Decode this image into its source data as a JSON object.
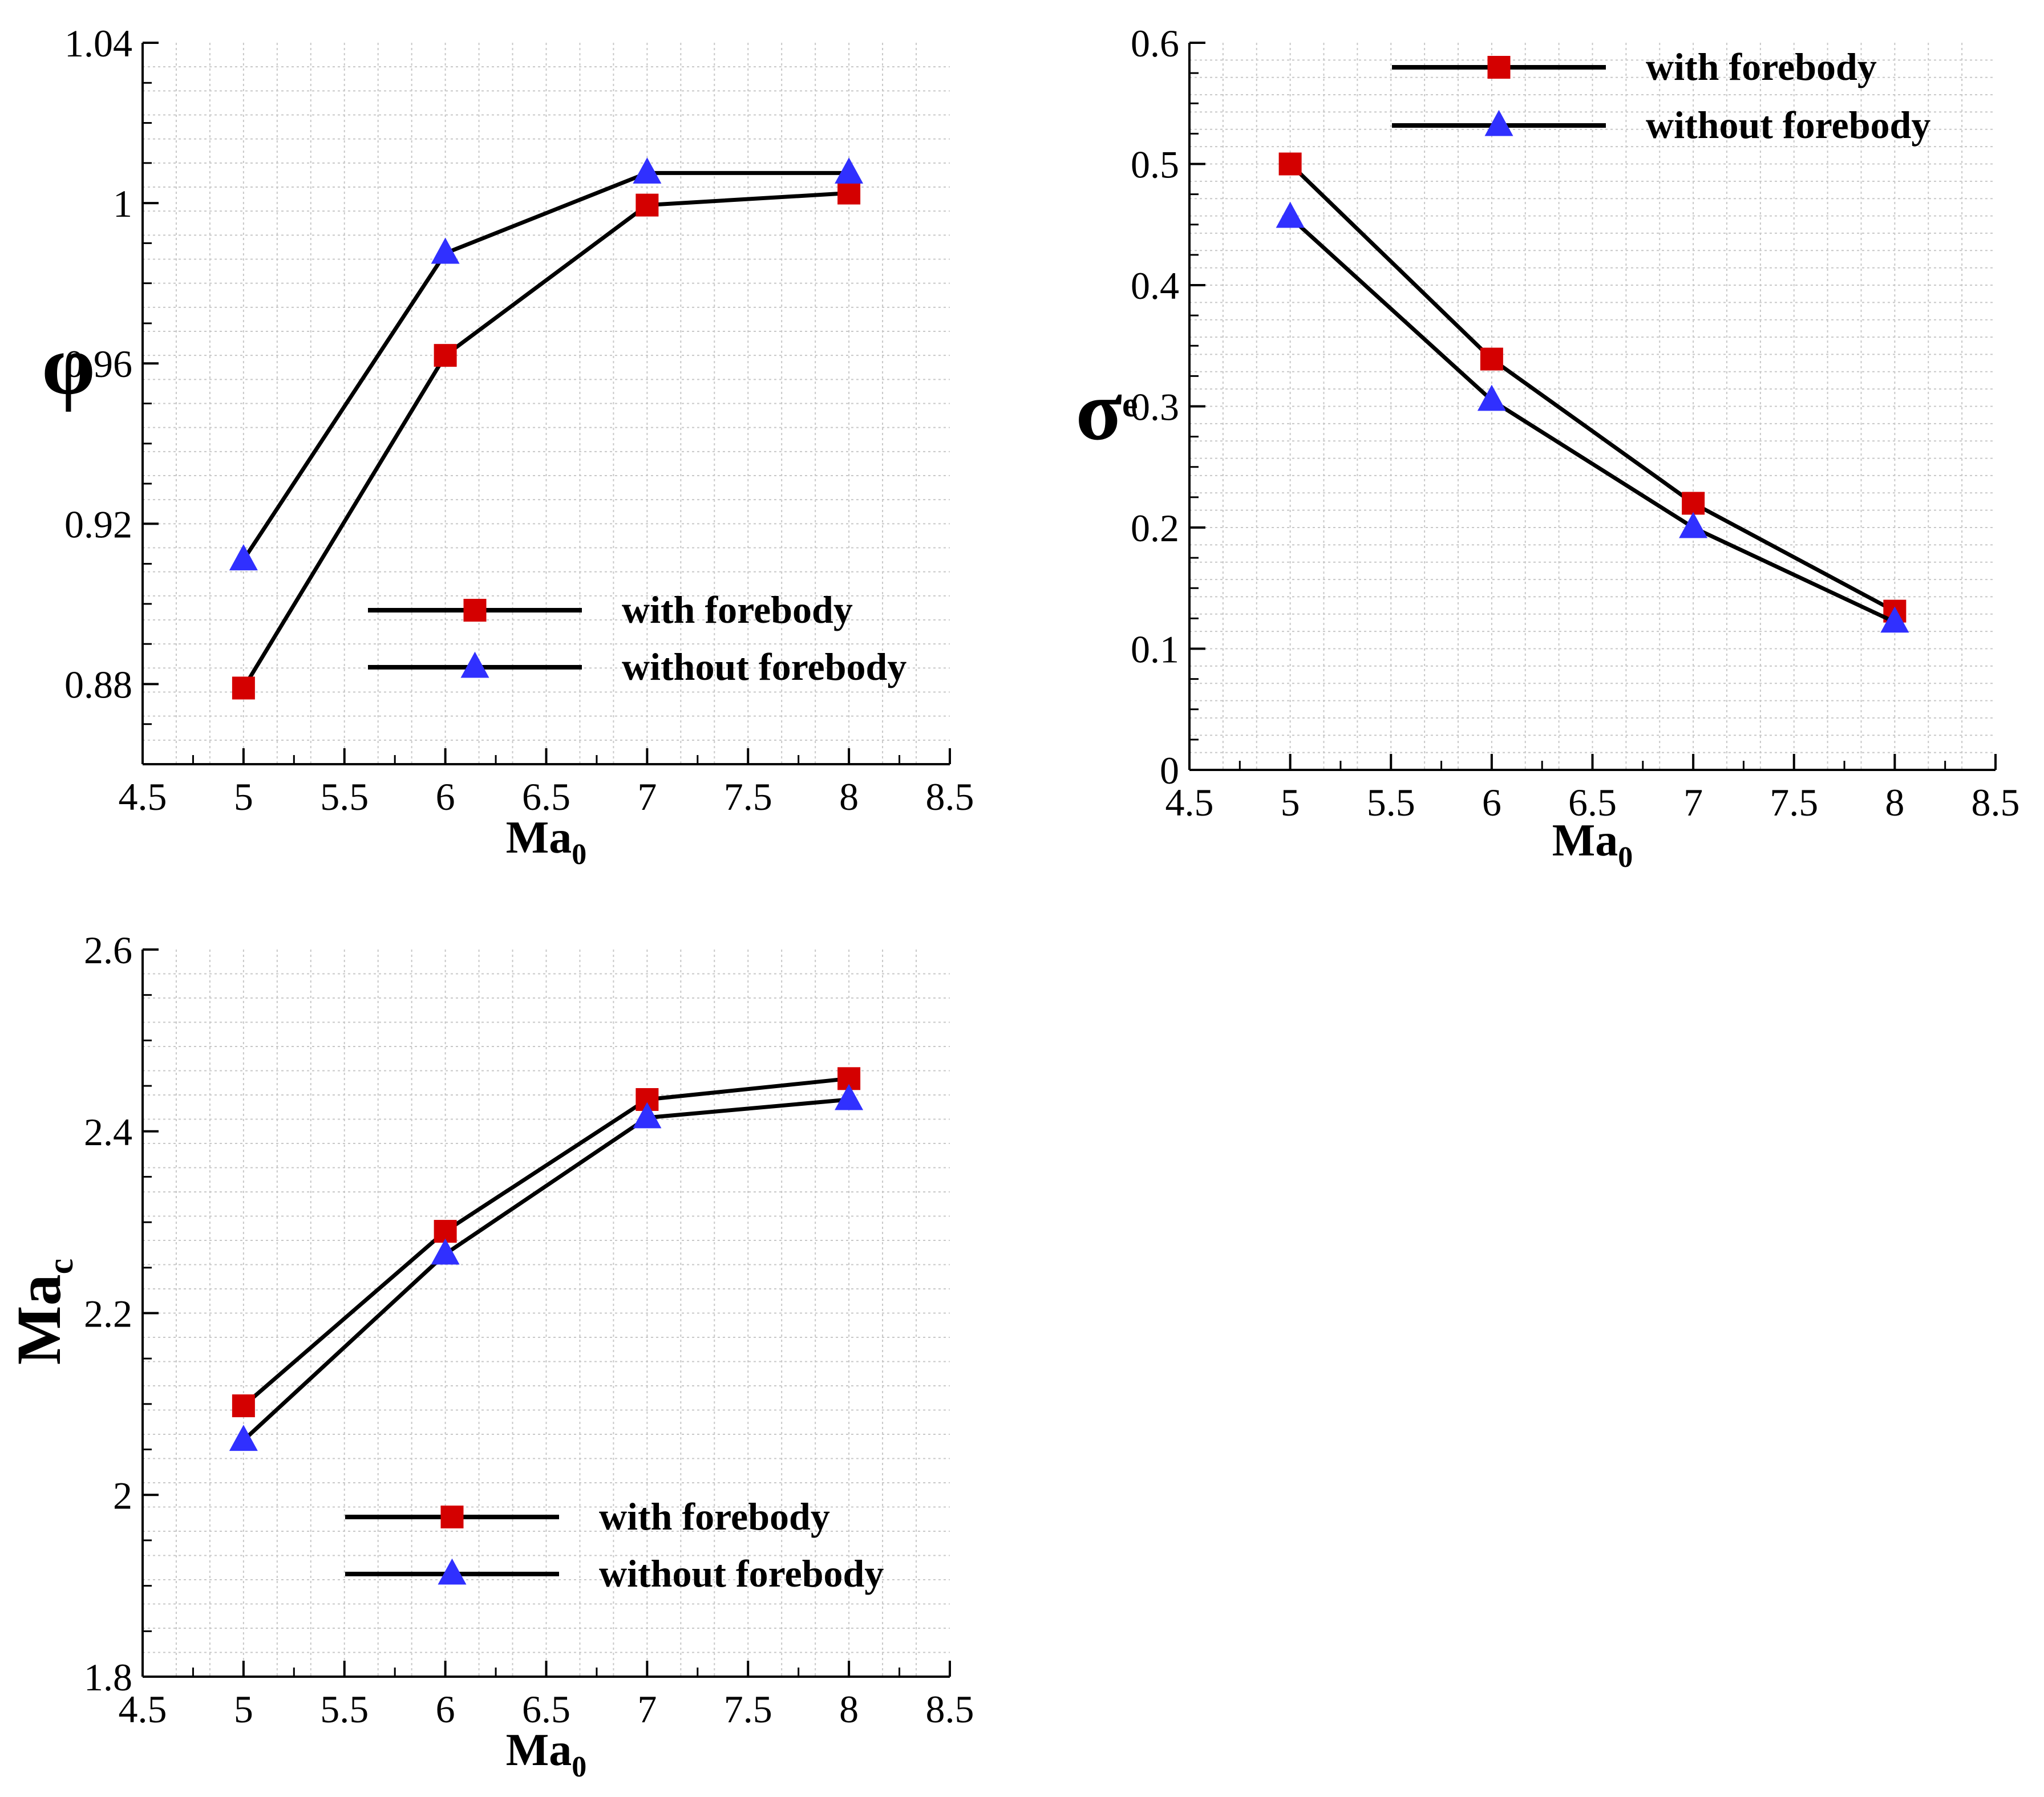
{
  "colors": {
    "with_forebody_marker": "#d40000",
    "without_forebody_marker": "#3030ff",
    "line": "#000000",
    "grid": "#c8c8c8"
  },
  "chart_data": [
    {
      "id": "phi",
      "type": "line",
      "xlabel": "Ma",
      "xlabel_sub": "0",
      "ylabel": "φ",
      "ylabel_sub": "",
      "xlim": [
        4.5,
        8.5
      ],
      "ylim": [
        0.86,
        1.04
      ],
      "xticks": [
        "4.5",
        "5",
        "5.5",
        "6",
        "6.5",
        "7",
        "7.5",
        "8",
        "8.5"
      ],
      "yticks": [
        "0.88",
        "0.92",
        "0.96",
        "1",
        "1.04"
      ],
      "grid": true,
      "legend_position": "bottom-right",
      "series": [
        {
          "name": "with forebody",
          "marker": "square",
          "x": [
            5,
            6,
            7,
            8
          ],
          "y": [
            0.879,
            0.962,
            0.9995,
            1.0025
          ]
        },
        {
          "name": "without forebody",
          "marker": "triangle",
          "x": [
            5,
            6,
            7,
            8
          ],
          "y": [
            0.911,
            0.9875,
            1.0075,
            1.0075
          ]
        }
      ]
    },
    {
      "id": "sigma",
      "type": "line",
      "xlabel": "Ma",
      "xlabel_sub": "0",
      "ylabel": "σ",
      "ylabel_sub": "e",
      "xlim": [
        4.5,
        8.5
      ],
      "ylim": [
        0,
        0.6
      ],
      "xticks": [
        "4.5",
        "5",
        "5.5",
        "6",
        "6.5",
        "7",
        "7.5",
        "8",
        "8.5"
      ],
      "yticks": [
        "0",
        "0.1",
        "0.2",
        "0.3",
        "0.4",
        "0.5",
        "0.6"
      ],
      "grid": true,
      "legend_position": "top-right",
      "series": [
        {
          "name": "with forebody",
          "marker": "square",
          "x": [
            5,
            6,
            7,
            8
          ],
          "y": [
            0.5,
            0.339,
            0.22,
            0.131
          ]
        },
        {
          "name": "without forebody",
          "marker": "triangle",
          "x": [
            5,
            6,
            7,
            8
          ],
          "y": [
            0.456,
            0.305,
            0.2,
            0.122
          ]
        }
      ]
    },
    {
      "id": "mac",
      "type": "line",
      "xlabel": "Ma",
      "xlabel_sub": "0",
      "ylabel": "Ma",
      "ylabel_sub": "c",
      "xlim": [
        4.5,
        8.5
      ],
      "ylim": [
        1.8,
        2.6
      ],
      "xticks": [
        "4.5",
        "5",
        "5.5",
        "6",
        "6.5",
        "7",
        "7.5",
        "8",
        "8.5"
      ],
      "yticks": [
        "1.8",
        "2",
        "2.2",
        "2.4",
        "2.6"
      ],
      "grid": true,
      "legend_position": "bottom-right",
      "series": [
        {
          "name": "with forebody",
          "marker": "square",
          "x": [
            5,
            6,
            7,
            8
          ],
          "y": [
            2.098,
            2.29,
            2.435,
            2.458
          ]
        },
        {
          "name": "without forebody",
          "marker": "triangle",
          "x": [
            5,
            6,
            7,
            8
          ],
          "y": [
            2.06,
            2.265,
            2.415,
            2.435
          ]
        }
      ]
    }
  ]
}
